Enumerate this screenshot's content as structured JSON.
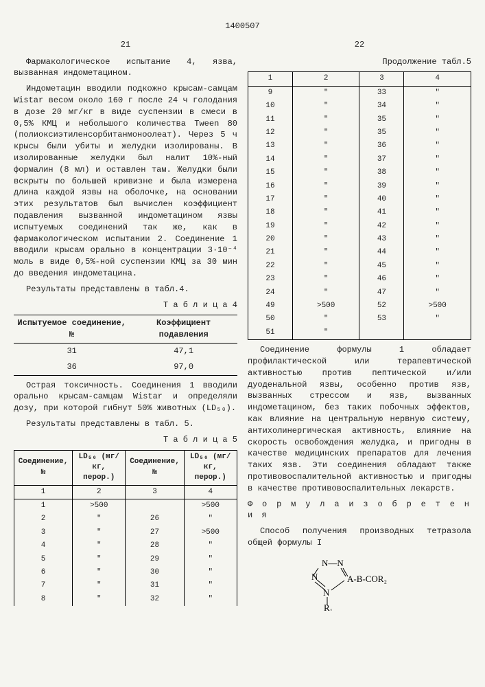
{
  "doc_number": "1400507",
  "left": {
    "page_num": "21",
    "p1": "Фармакологическое испытание 4, язва, вызванная индометацином.",
    "p2": "Индометацин вводили подкожно крысам-самцам Wistar весом около 160 г после 24 ч голодания в дозе 20 мг/кг в виде суспензии в смеси в 0,5% КМЦ и небольшого количества Tween 80 (полиоксиэтиленсорбитанмоноолеат). Через 5 ч крысы были убиты и желудки изолированы. В изолированные желудки был налит 10%-ный формалин (8 мл) и оставлен там. Желудки были вскрыты по большей кривизне и была измерена длина каждой язвы на оболочке, на основании этих результатов был вычислен коэффициент подавления вызванной индометацином язвы испытуемых соединений так же, как в фармакологическом испытании 2. Соединение 1 вводили крысам орально в концентрации 3·10⁻⁴ моль в виде 0,5%-ной суспензии КМЦ за 30 мин до введения индометацина.",
    "p3": "Результаты представлены в табл.4.",
    "t4_caption": "Т а б л и ц а  4",
    "t4_h1": "Испытуемое соединение, №",
    "t4_h2": "Коэффициент подавления",
    "t4_rows": [
      {
        "n": "31",
        "k": "47,1"
      },
      {
        "n": "36",
        "k": "97,0"
      }
    ],
    "p4": "Острая токсичность. Соединения 1 вводили орально крысам-самцам Wistar и определяли дозу, при которой гибнут 50% животных (LD₅₀).",
    "p5": "Результаты представлены в табл. 5.",
    "t5_caption": "Т а б л и ц а  5",
    "t5_h1": "Соединение, №",
    "t5_h2": "LD₅₀ (мг/кг, перор.)",
    "t5_h3": "Соединение, №",
    "t5_h4": "LD₅₀ (мг/кг, перор.)",
    "t5_rows": [
      {
        "a": "1",
        "b": "2",
        "c": "3",
        "d": "4"
      },
      {
        "a": "1",
        "b": ">500",
        "c": "",
        "d": ">500"
      },
      {
        "a": "2",
        "b": "\"",
        "c": "26",
        "d": "\""
      },
      {
        "a": "3",
        "b": "\"",
        "c": "27",
        "d": ">500"
      },
      {
        "a": "4",
        "b": "\"",
        "c": "28",
        "d": "\""
      },
      {
        "a": "5",
        "b": "\"",
        "c": "29",
        "d": "\""
      },
      {
        "a": "6",
        "b": "\"",
        "c": "30",
        "d": "\""
      },
      {
        "a": "7",
        "b": "\"",
        "c": "31",
        "d": "\""
      },
      {
        "a": "8",
        "b": "\"",
        "c": "32",
        "d": "\""
      }
    ],
    "markers": [
      "5",
      "10",
      "15",
      "20",
      "25",
      "30",
      "35",
      "40",
      "45",
      "50",
      "55"
    ]
  },
  "right": {
    "page_num": "22",
    "t5c_caption": "Продолжение табл.5",
    "t5c_rows": [
      {
        "a": "1",
        "b": "2",
        "c": "3",
        "d": "4"
      },
      {
        "a": "9",
        "b": "\"",
        "c": "33",
        "d": "\""
      },
      {
        "a": "10",
        "b": "\"",
        "c": "34",
        "d": "\""
      },
      {
        "a": "11",
        "b": "\"",
        "c": "35",
        "d": "\""
      },
      {
        "a": "12",
        "b": "\"",
        "c": "35",
        "d": "\""
      },
      {
        "a": "13",
        "b": "\"",
        "c": "36",
        "d": "\""
      },
      {
        "a": "14",
        "b": "\"",
        "c": "37",
        "d": "\""
      },
      {
        "a": "15",
        "b": "\"",
        "c": "38",
        "d": "\""
      },
      {
        "a": "16",
        "b": "\"",
        "c": "39",
        "d": "\""
      },
      {
        "a": "17",
        "b": "\"",
        "c": "40",
        "d": "\""
      },
      {
        "a": "18",
        "b": "\"",
        "c": "41",
        "d": "\""
      },
      {
        "a": "19",
        "b": "\"",
        "c": "42",
        "d": "\""
      },
      {
        "a": "20",
        "b": "\"",
        "c": "43",
        "d": "\""
      },
      {
        "a": "21",
        "b": "\"",
        "c": "44",
        "d": "\""
      },
      {
        "a": "22",
        "b": "\"",
        "c": "45",
        "d": "\""
      },
      {
        "a": "23",
        "b": "\"",
        "c": "46",
        "d": "\""
      },
      {
        "a": "24",
        "b": "\"",
        "c": "47",
        "d": "\""
      },
      {
        "a": "49",
        "b": ">500",
        "c": "52",
        "d": ">500"
      },
      {
        "a": "50",
        "b": "\"",
        "c": "53",
        "d": "\""
      },
      {
        "a": "51",
        "b": "\"",
        "c": "",
        "d": ""
      }
    ],
    "p1": "Соединение формулы 1 обладает профилактической или терапевтической активностью против пептической и/или дуоденальной язвы, особенно против язв, вызванных стрессом и язв, вызванных индометацином, без таких побочных эффектов, как влияние на центральную нервную систему, антихолинергическая активность, влияние на скорость освобождения желудка, и пригодны в качестве медицинских препаратов для лечения таких язв. Эти соединения обладают также противовоспалительной активностью и пригодны в качестве противовоспалительных лекарств.",
    "formula_title": "Ф о р м у л а  и з о б р е т е н и я",
    "p2": "Способ получения производных тетразола общей формулы I",
    "chem": {
      "tail": "A-B-COR₂",
      "r1": "R₁"
    }
  }
}
